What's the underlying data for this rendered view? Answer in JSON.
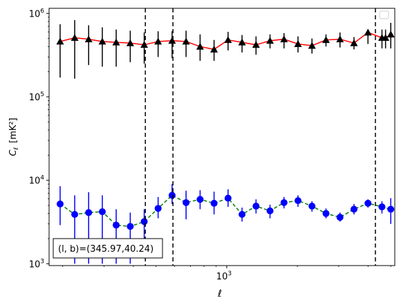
{
  "chart_data": {
    "type": "scatter",
    "xlabel": "ℓ",
    "ylabel_main": "C",
    "ylabel_sub": "ℓ",
    "ylabel_unit": "[mK²]",
    "xscale": "log",
    "yscale": "log",
    "xlim": [
      175,
      5200
    ],
    "ylim": [
      950,
      1150000
    ],
    "x_ticks": [
      {
        "value": 1000,
        "label_base": "10",
        "label_exp": "3"
      }
    ],
    "y_ticks": [
      {
        "value": 1000,
        "label_base": "10",
        "label_exp": "3"
      },
      {
        "value": 10000,
        "label_base": "10",
        "label_exp": "4"
      },
      {
        "value": 100000,
        "label_base": "10",
        "label_exp": "5"
      },
      {
        "value": 1000000,
        "label_base": "10",
        "label_exp": "6"
      }
    ],
    "vlines": [
      450,
      590,
      4300
    ],
    "annotation": "(l, b)=(345.97,40.24)",
    "legend": "top-right",
    "series": [
      {
        "marker": "triangle",
        "color": "#000000",
        "line_color": "#ff0000",
        "line_style": "solid",
        "x": [
          195,
          225,
          258,
          295,
          338,
          388,
          445,
          510,
          585,
          671,
          770,
          883,
          1013,
          1162,
          1333,
          1529,
          1754,
          2012,
          2308,
          2648,
          3038,
          3485,
          3998,
          4586,
          4750,
          5000
        ],
        "y": [
          460000,
          510000,
          490000,
          460000,
          450000,
          440000,
          420000,
          460000,
          470000,
          460000,
          400000,
          370000,
          480000,
          450000,
          420000,
          470000,
          490000,
          430000,
          410000,
          480000,
          490000,
          440000,
          590000,
          510000,
          510000,
          560000
        ],
        "y_low": [
          170000,
          165000,
          240000,
          230000,
          230000,
          260000,
          250000,
          300000,
          290000,
          300000,
          270000,
          270000,
          360000,
          340000,
          320000,
          380000,
          380000,
          340000,
          330000,
          400000,
          390000,
          370000,
          430000,
          380000,
          380000,
          380000
        ],
        "y_high": [
          740000,
          830000,
          720000,
          680000,
          640000,
          620000,
          590000,
          610000,
          610000,
          620000,
          560000,
          480000,
          600000,
          550000,
          530000,
          560000,
          580000,
          530000,
          500000,
          560000,
          590000,
          520000,
          630000,
          640000,
          640000,
          770000
        ]
      },
      {
        "marker": "circle",
        "color": "#0000ff",
        "line_color": "#008000",
        "line_style": "dashed",
        "x": [
          195,
          225,
          258,
          295,
          338,
          388,
          445,
          510,
          585,
          671,
          770,
          883,
          1013,
          1162,
          1333,
          1529,
          1754,
          2012,
          2308,
          2648,
          3038,
          3485,
          3998,
          4586,
          5000
        ],
        "y": [
          5200,
          3900,
          4100,
          4200,
          2900,
          2800,
          3200,
          4600,
          6600,
          5400,
          5900,
          5300,
          6100,
          3900,
          4900,
          4300,
          5400,
          5700,
          4900,
          4000,
          3600,
          4500,
          5300,
          4800,
          4500
        ],
        "y_low": [
          2900,
          1000,
          1000,
          1000,
          1000,
          1000,
          2000,
          3500,
          5200,
          3400,
          4500,
          3900,
          4800,
          3200,
          4000,
          3500,
          4600,
          4800,
          4200,
          3500,
          3200,
          3900,
          4700,
          4000,
          3000
        ],
        "y_high": [
          8500,
          6600,
          7200,
          6600,
          4500,
          4100,
          4500,
          6300,
          9000,
          7500,
          7600,
          7300,
          7800,
          4700,
          5900,
          5100,
          6300,
          6600,
          5600,
          4600,
          4100,
          5200,
          5900,
          5600,
          6100
        ]
      }
    ]
  }
}
